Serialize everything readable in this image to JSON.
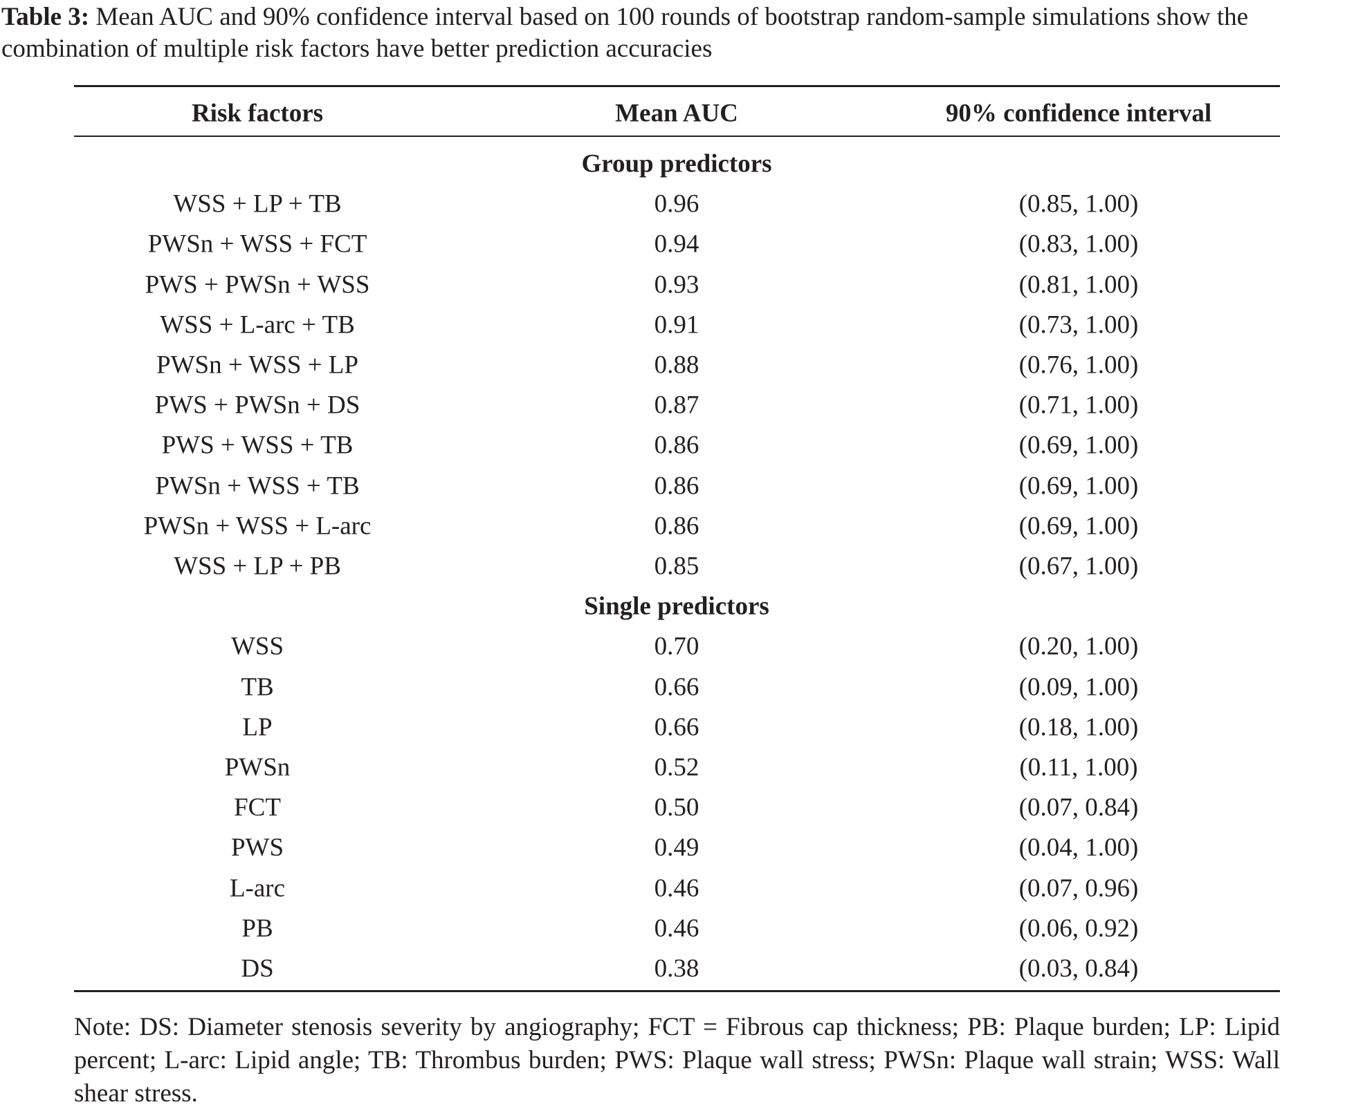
{
  "caption": {
    "label": "Table 3:",
    "text": "Mean AUC and 90% confidence interval based on 100 rounds of bootstrap random-sample simulations show the combination of multiple risk factors have better prediction accuracies"
  },
  "table": {
    "header": [
      "Risk factors",
      "Mean AUC",
      "90% confidence interval"
    ],
    "groups": [
      {
        "title": "Group predictors",
        "rows": [
          [
            "WSS + LP + TB",
            "0.96",
            "(0.85, 1.00)"
          ],
          [
            "PWSn + WSS + FCT",
            "0.94",
            "(0.83, 1.00)"
          ],
          [
            "PWS + PWSn + WSS",
            "0.93",
            "(0.81, 1.00)"
          ],
          [
            "WSS + L-arc + TB",
            "0.91",
            "(0.73, 1.00)"
          ],
          [
            "PWSn + WSS + LP",
            "0.88",
            "(0.76, 1.00)"
          ],
          [
            "PWS + PWSn + DS",
            "0.87",
            "(0.71, 1.00)"
          ],
          [
            "PWS + WSS + TB",
            "0.86",
            "(0.69, 1.00)"
          ],
          [
            "PWSn + WSS + TB",
            "0.86",
            "(0.69, 1.00)"
          ],
          [
            "PWSn + WSS + L-arc",
            "0.86",
            "(0.69, 1.00)"
          ],
          [
            "WSS + LP + PB",
            "0.85",
            "(0.67, 1.00)"
          ]
        ]
      },
      {
        "title": "Single predictors",
        "rows": [
          [
            "WSS",
            "0.70",
            "(0.20, 1.00)"
          ],
          [
            "TB",
            "0.66",
            "(0.09, 1.00)"
          ],
          [
            "LP",
            "0.66",
            "(0.18, 1.00)"
          ],
          [
            "PWSn",
            "0.52",
            "(0.11, 1.00)"
          ],
          [
            "FCT",
            "0.50",
            "(0.07, 0.84)"
          ],
          [
            "PWS",
            "0.49",
            "(0.04, 1.00)"
          ],
          [
            "L-arc",
            "0.46",
            "(0.07, 0.96)"
          ],
          [
            "PB",
            "0.46",
            "(0.06, 0.92)"
          ],
          [
            "DS",
            "0.38",
            "(0.03, 0.84)"
          ]
        ]
      }
    ]
  },
  "note": "Note: DS: Diameter stenosis severity by angiography; FCT = Fibrous cap thickness; PB: Plaque burden; LP: Lipid percent; L-arc: Lipid angle; TB: Thrombus burden; PWS: Plaque wall stress; PWSn: Plaque wall strain; WSS: Wall shear stress."
}
